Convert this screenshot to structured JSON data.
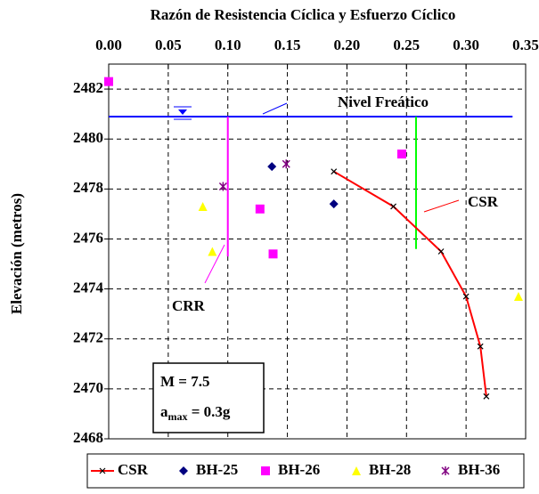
{
  "chart_data": {
    "type": "scatter",
    "title": "Razón de Resistencia Cíclica y Esfuerzo Cíclico",
    "y_label": "Elevación (metros)",
    "xlim": [
      0,
      0.35
    ],
    "xticks": [
      {
        "value": 0,
        "label": "0.00"
      },
      {
        "value": 0.05,
        "label": "0.05"
      },
      {
        "value": 0.1,
        "label": "0.10"
      },
      {
        "value": 0.15,
        "label": "0.15"
      },
      {
        "value": 0.2,
        "label": "0.20"
      },
      {
        "value": 0.25,
        "label": "0.25"
      },
      {
        "value": 0.3,
        "label": "0.30"
      },
      {
        "value": 0.35,
        "label": "0.35"
      }
    ],
    "ylim": [
      2468,
      2483
    ],
    "yticks": [
      2468,
      2470,
      2472,
      2474,
      2476,
      2478,
      2480,
      2482
    ],
    "grid": true,
    "series": [
      {
        "name": "CSR",
        "color": "#ff0000",
        "marker": "x",
        "line": true,
        "x": [
          0.189,
          0.239,
          0.279,
          0.3,
          0.312,
          0.317
        ],
        "values": [
          2478.7,
          2477.3,
          2475.5,
          2473.7,
          2471.7,
          2469.7
        ]
      },
      {
        "name": "BH-25",
        "color": "#000080",
        "marker": "diamond",
        "x": [
          0.137,
          0.189
        ],
        "values": [
          2478.9,
          2477.4
        ]
      },
      {
        "name": "BH-26",
        "color": "#ff00ff",
        "marker": "square",
        "x": [
          0.0,
          0.127,
          0.138,
          0.246
        ],
        "values": [
          2482.3,
          2477.2,
          2475.4,
          2479.4
        ]
      },
      {
        "name": "BH-28",
        "color": "#ffff00",
        "marker": "triangle",
        "x": [
          0.079,
          0.087,
          0.344
        ],
        "values": [
          2477.3,
          2475.5,
          2473.7
        ]
      },
      {
        "name": "BH-36",
        "color": "#800080",
        "marker": "star",
        "x": [
          0.096,
          0.149
        ],
        "values": [
          2478.1,
          2479.0
        ]
      }
    ],
    "reference_lines": [
      {
        "color": "#0000ff",
        "x": [
          0,
          0.339
        ],
        "values": [
          2480.9,
          2480.9
        ]
      },
      {
        "color": "#ff00ff",
        "x": [
          0.1,
          0.1
        ],
        "values": [
          2480.9,
          2475.3
        ]
      },
      {
        "color": "#00ff00",
        "x": [
          0.258,
          0.258
        ],
        "values": [
          2480.9,
          2475.6
        ]
      }
    ],
    "annotations": [
      "Nivel Freático",
      "CSR",
      "CRR",
      "M = 7.5"
    ],
    "amax": {
      "base": "a",
      "sub": "max",
      "rest": " = 0.3g"
    }
  }
}
